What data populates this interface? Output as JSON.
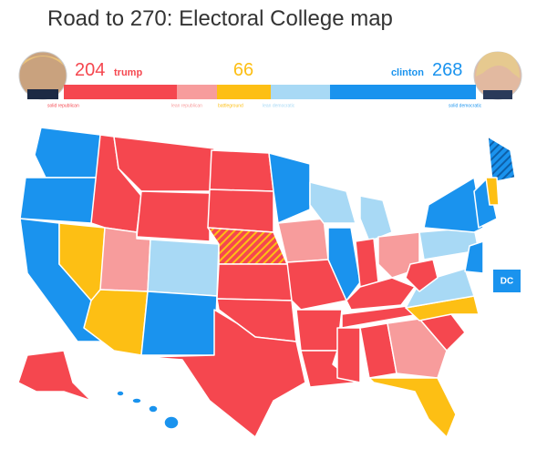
{
  "title": "Road to 270: Electoral College map",
  "trump": {
    "votes": 204,
    "name": "trump"
  },
  "battleground": {
    "votes": 66
  },
  "clinton": {
    "votes": 268,
    "name": "clinton"
  },
  "legend": [
    "solid republican",
    "lean republican",
    "battleground",
    "lean democratic",
    "solid democratic"
  ],
  "dc": "DC"
}
